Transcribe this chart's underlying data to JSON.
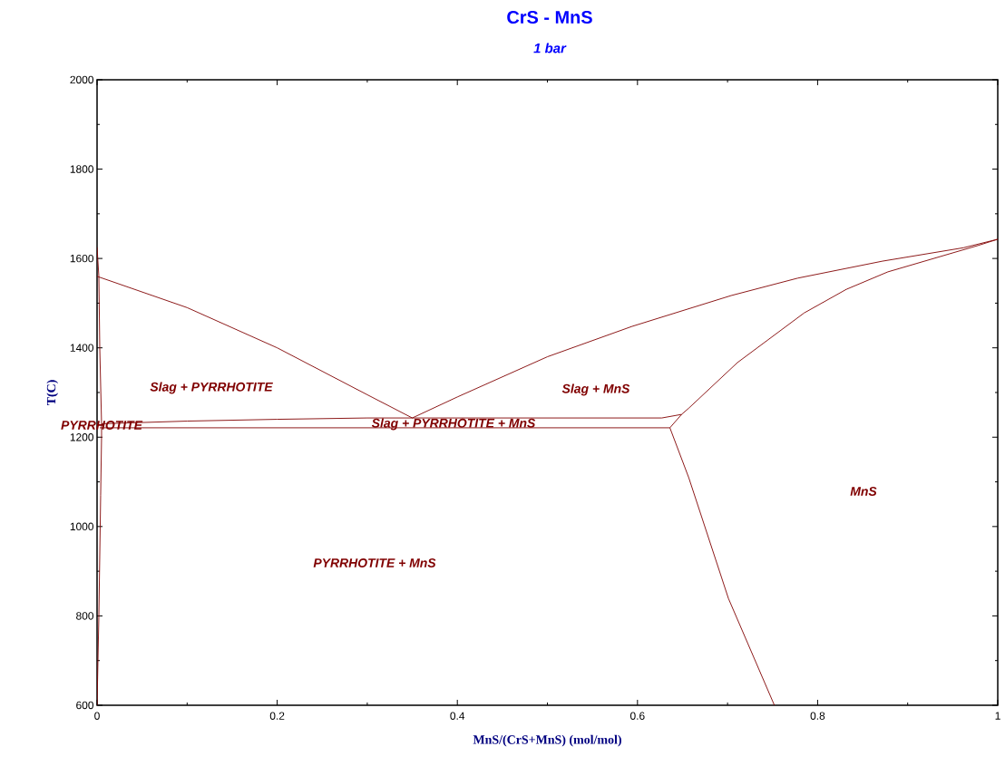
{
  "chart_data": {
    "type": "line",
    "title": "CrS - MnS",
    "subtitle": "1 bar",
    "xlabel": "MnS/(CrS+MnS) (mol/mol)",
    "ylabel": "T(C)",
    "marker": "none",
    "xlim": [
      0,
      1
    ],
    "ylim": [
      600,
      2000
    ],
    "xticks": [
      0,
      0.2,
      0.4,
      0.6,
      0.8,
      1
    ],
    "yticks": [
      600,
      800,
      1000,
      1200,
      1400,
      1600,
      1800,
      2000
    ],
    "series": [
      {
        "color": "#800000",
        "x": [
          0,
          0.1,
          0.2,
          0.3,
          0.35
        ],
        "values": [
          1560,
          1490,
          1400,
          1295,
          1243
        ]
      },
      {
        "color": "#800000",
        "x": [
          0.35,
          0.4,
          0.5,
          0.594,
          0.704,
          0.778,
          0.872,
          0.962,
          1
        ],
        "values": [
          1243,
          1290,
          1380,
          1448,
          1517,
          1556,
          1594,
          1624,
          1643
        ]
      },
      {
        "color": "#800000",
        "x": [
          1,
          0.978,
          0.878,
          0.832,
          0.785,
          0.711,
          0.657,
          0.649,
          0.636,
          0.657,
          0.701,
          0.752
        ],
        "values": [
          1643,
          1629,
          1570,
          1531,
          1478,
          1367,
          1265,
          1251,
          1221,
          1109,
          839,
          600
        ]
      },
      {
        "color": "#800000",
        "x": [
          0.005,
          0.1,
          0.2,
          0.3,
          0.35,
          0.5,
          0.627,
          0.649
        ],
        "values": [
          1230,
          1236,
          1240,
          1243,
          1243,
          1243,
          1243,
          1251
        ]
      },
      {
        "color": "#800000",
        "x": [
          0.003,
          0.636
        ],
        "values": [
          1221,
          1221
        ]
      },
      {
        "color": "#800000",
        "x": [
          0,
          0.002,
          0.003,
          0.005,
          0.005,
          0.004,
          0.002,
          0
        ],
        "values": [
          1625,
          1560,
          1400,
          1230,
          1200,
          1070,
          800,
          600
        ]
      }
    ],
    "annotations": [
      "Slag + PYRRHOTITE",
      "PYRRHOTITE",
      "Slag + PYRRHOTITE + MnS",
      "Slag + MnS",
      "MnS",
      "PYRRHOTITE + MnS"
    ]
  }
}
